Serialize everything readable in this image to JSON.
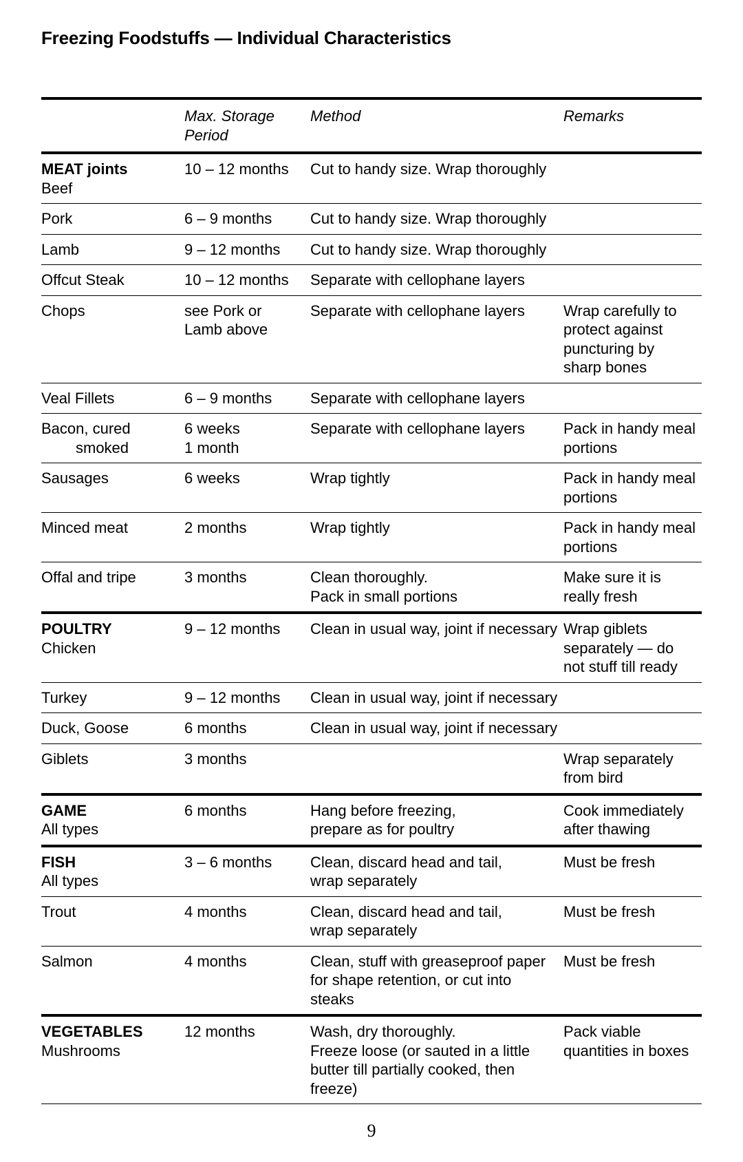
{
  "title": "Freezing Foodstuffs — Individual Characteristics",
  "headers": {
    "period_line1": "Max. Storage",
    "period_line2": "Period",
    "method": "Method",
    "remarks": "Remarks"
  },
  "sections": [
    {
      "heading": "MEAT joints",
      "rows": [
        {
          "item": "Beef",
          "item_inline_with_heading": true,
          "period": "10 – 12 months",
          "method": "Cut to handy size. Wrap thoroughly",
          "remarks": ""
        },
        {
          "item": "Pork",
          "period": "6 – 9 months",
          "method": "Cut to handy size. Wrap thoroughly",
          "remarks": ""
        },
        {
          "item": "Lamb",
          "period": "9 – 12 months",
          "method": "Cut to handy size. Wrap thoroughly",
          "remarks": ""
        },
        {
          "item": "Offcut Steak",
          "period": "10 – 12 months",
          "method": "Separate with cellophane layers",
          "remarks": ""
        },
        {
          "item": "Chops",
          "period": "see Pork or\nLamb above",
          "method": "Separate with cellophane layers",
          "remarks": "Wrap carefully to protect against puncturing by sharp bones"
        },
        {
          "item": "Veal Fillets",
          "period": "6 – 9 months",
          "method": "Separate with cellophane layers",
          "remarks": ""
        },
        {
          "item": "Bacon, cured",
          "item_line2_indent": "smoked",
          "period": "6 weeks\n1 month",
          "method": "Separate with cellophane layers",
          "remarks": "Pack in handy meal portions"
        },
        {
          "item": "Sausages",
          "period": "6 weeks",
          "method": "Wrap tightly",
          "remarks": "Pack in handy meal portions"
        },
        {
          "item": "Minced meat",
          "period": "2 months",
          "method": "Wrap tightly",
          "remarks": "Pack in handy meal portions"
        },
        {
          "item": "Offal and tripe",
          "period": "3 months",
          "method": "Clean thoroughly.\nPack in small portions",
          "remarks": "Make sure it is really fresh"
        }
      ]
    },
    {
      "heading": "POULTRY",
      "rows": [
        {
          "item": "Chicken",
          "item_inline_with_heading": true,
          "period": "9 – 12 months",
          "method": "Clean in usual way, joint if necessary",
          "remarks": "Wrap giblets separately — do not stuff till ready"
        },
        {
          "item": "Turkey",
          "period": "9 – 12 months",
          "method": "Clean in usual way, joint if necessary",
          "remarks": ""
        },
        {
          "item": "Duck, Goose",
          "period": "6 months",
          "method": "Clean in usual way, joint if necessary",
          "remarks": ""
        },
        {
          "item": "Giblets",
          "period": "3 months",
          "method": "",
          "remarks": "Wrap separately from bird"
        }
      ]
    },
    {
      "heading": "GAME",
      "rows": [
        {
          "item": "All types",
          "item_inline_with_heading": true,
          "period": "6 months",
          "method": "Hang before freezing,\nprepare as for poultry",
          "remarks": "Cook immediately after thawing"
        }
      ]
    },
    {
      "heading": "FISH",
      "rows": [
        {
          "item": "All types",
          "item_inline_with_heading": true,
          "period": "3 – 6 months",
          "method": "Clean, discard head and tail,\nwrap separately",
          "remarks": "Must be fresh"
        },
        {
          "item": "Trout",
          "period": "4 months",
          "method": "Clean, discard head and tail,\nwrap separately",
          "remarks": "Must be fresh"
        },
        {
          "item": "Salmon",
          "period": "4 months",
          "method": "Clean, stuff with greaseproof paper for shape retention, or cut into steaks",
          "remarks": "Must be fresh"
        }
      ]
    },
    {
      "heading": "VEGETABLES",
      "rows": [
        {
          "item": "Mushrooms",
          "item_inline_with_heading": true,
          "period": "12 months",
          "method": "Wash, dry thoroughly.\nFreeze loose (or sauted in a little butter till partially cooked, then freeze)",
          "remarks": "Pack viable quantities in boxes"
        }
      ]
    }
  ],
  "page_number": "9"
}
